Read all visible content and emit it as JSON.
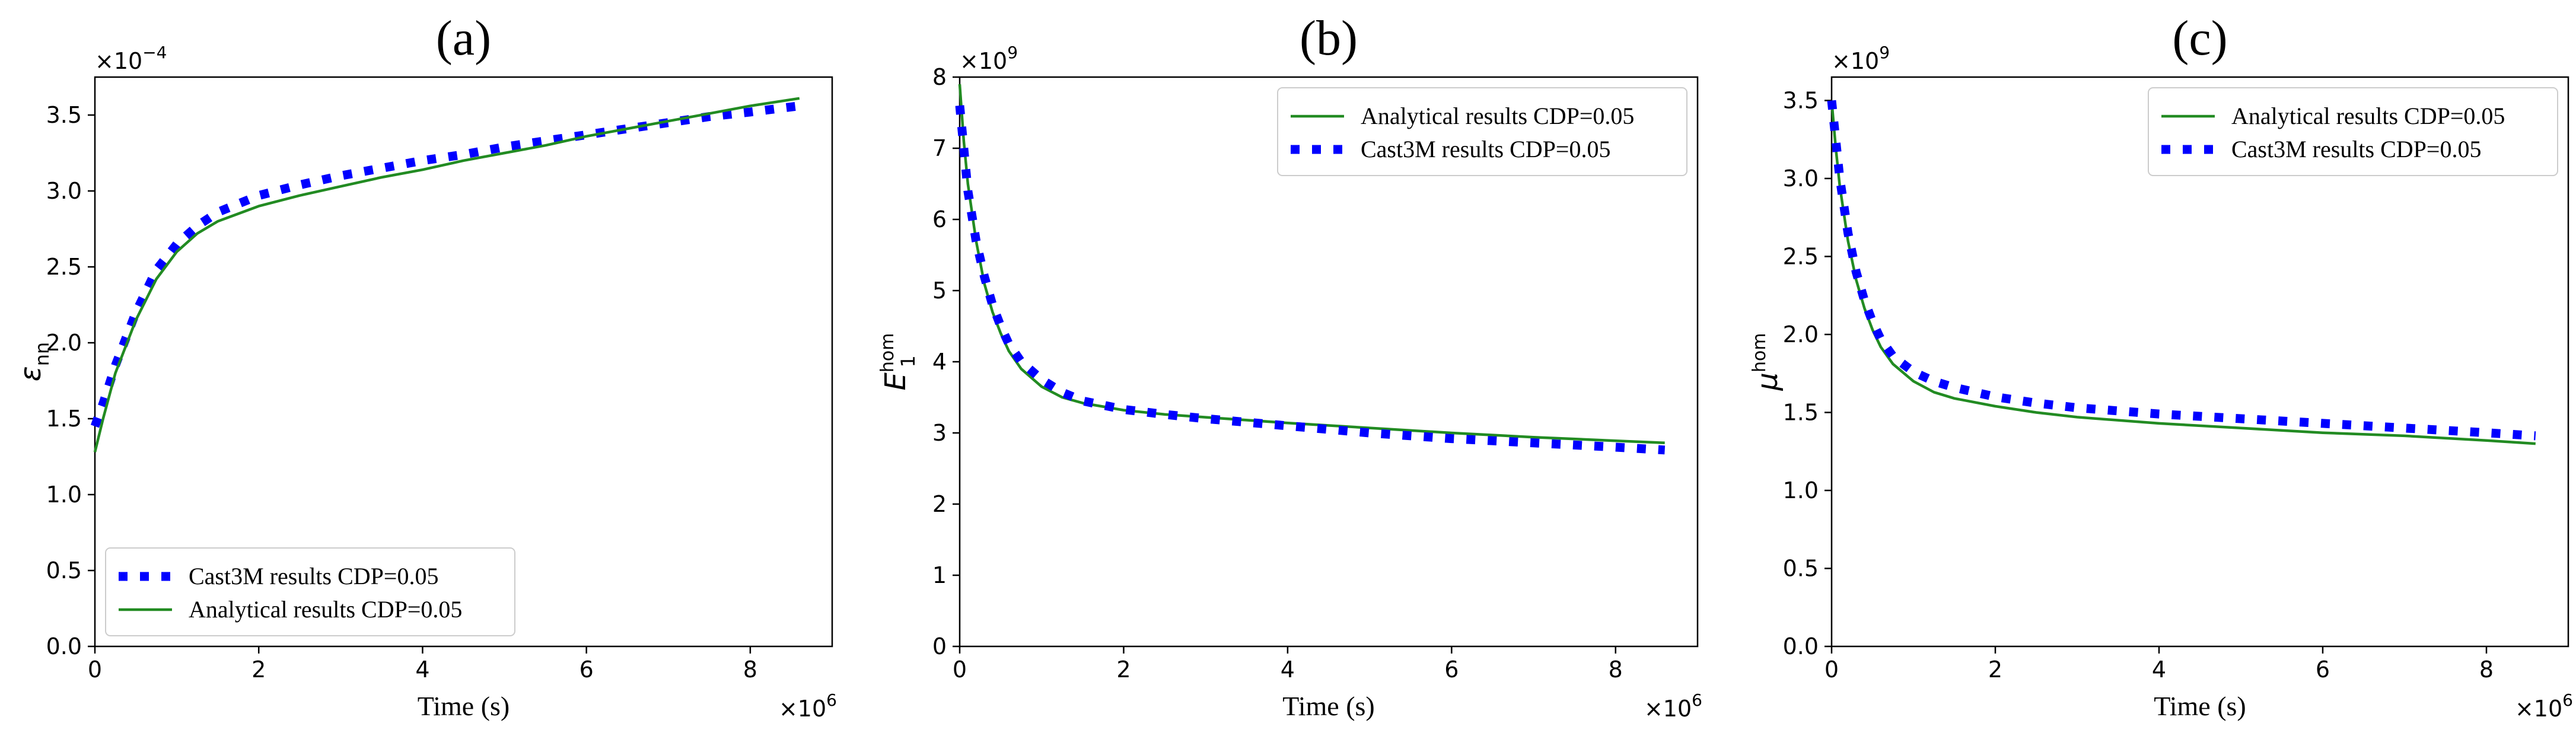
{
  "chart_data": [
    {
      "type": "line",
      "panel_label": "(a)",
      "ylabel": "ε",
      "ylabel_sub": "nn",
      "xlabel": "Time (s)",
      "x_multiplier_base": "×10",
      "x_multiplier_exp": "6",
      "y_multiplier_base": "×10",
      "y_multiplier_exp": "−4",
      "xlim": [
        0,
        9.0
      ],
      "ylim": [
        0.0,
        3.75
      ],
      "xticks": [
        0,
        2,
        4,
        6,
        8
      ],
      "yticks": [
        0.0,
        0.5,
        1.0,
        1.5,
        2.0,
        2.5,
        3.0,
        3.5
      ],
      "ytick_labels": [
        "0.0",
        "0.5",
        "1.0",
        "1.5",
        "2.0",
        "2.5",
        "3.0",
        "3.5"
      ],
      "xtick_labels": [
        "0",
        "2",
        "4",
        "6",
        "8"
      ],
      "legend_position": "lower-left",
      "series": [
        {
          "name": "Cast3M results CDP=0.05",
          "style": "dotted",
          "color": "#0000ff",
          "x": [
            0.0,
            0.1,
            0.25,
            0.5,
            0.75,
            1.0,
            1.25,
            1.5,
            2.0,
            2.5,
            3.0,
            3.5,
            4.0,
            4.5,
            5.0,
            5.5,
            6.0,
            6.5,
            7.0,
            7.5,
            8.0,
            8.6
          ],
          "y": [
            1.45,
            1.6,
            1.85,
            2.2,
            2.48,
            2.65,
            2.77,
            2.86,
            2.97,
            3.04,
            3.1,
            3.15,
            3.2,
            3.24,
            3.29,
            3.33,
            3.37,
            3.41,
            3.45,
            3.49,
            3.52,
            3.56
          ]
        },
        {
          "name": "Analytical results CDP=0.05",
          "style": "solid",
          "color": "#228b22",
          "x": [
            0.0,
            0.1,
            0.25,
            0.5,
            0.75,
            1.0,
            1.25,
            1.5,
            2.0,
            2.5,
            3.0,
            3.5,
            4.0,
            4.5,
            5.0,
            5.5,
            6.0,
            6.5,
            7.0,
            7.5,
            8.0,
            8.6
          ],
          "y": [
            1.28,
            1.5,
            1.8,
            2.15,
            2.42,
            2.6,
            2.72,
            2.8,
            2.9,
            2.97,
            3.03,
            3.09,
            3.14,
            3.2,
            3.25,
            3.3,
            3.36,
            3.41,
            3.46,
            3.51,
            3.56,
            3.61
          ]
        }
      ]
    },
    {
      "type": "line",
      "panel_label": "(b)",
      "ylabel": "E",
      "ylabel_sub": "1",
      "ylabel_sup": "hom",
      "xlabel": "Time (s)",
      "x_multiplier_base": "×10",
      "x_multiplier_exp": "6",
      "y_multiplier_base": "×10",
      "y_multiplier_exp": "9",
      "xlim": [
        0,
        9.0
      ],
      "ylim": [
        0,
        8
      ],
      "xticks": [
        0,
        2,
        4,
        6,
        8
      ],
      "yticks": [
        0,
        1,
        2,
        3,
        4,
        5,
        6,
        7,
        8
      ],
      "ytick_labels": [
        "0",
        "1",
        "2",
        "3",
        "4",
        "5",
        "6",
        "7",
        "8"
      ],
      "xtick_labels": [
        "0",
        "2",
        "4",
        "6",
        "8"
      ],
      "legend_position": "top-right",
      "series": [
        {
          "name": "Analytical results CDP=0.05",
          "style": "solid",
          "color": "#228b22",
          "x": [
            0.0,
            0.05,
            0.1,
            0.2,
            0.3,
            0.4,
            0.5,
            0.6,
            0.75,
            1.0,
            1.25,
            1.5,
            2.0,
            2.5,
            3.0,
            4.0,
            5.0,
            6.0,
            7.0,
            8.0,
            8.6
          ],
          "y": [
            7.9,
            7.1,
            6.5,
            5.7,
            5.1,
            4.7,
            4.4,
            4.15,
            3.9,
            3.65,
            3.5,
            3.42,
            3.32,
            3.26,
            3.22,
            3.14,
            3.07,
            3.0,
            2.94,
            2.89,
            2.86
          ]
        },
        {
          "name": "Cast3M results CDP=0.05",
          "style": "dotted",
          "color": "#0000ff",
          "x": [
            0.0,
            0.05,
            0.1,
            0.2,
            0.3,
            0.4,
            0.5,
            0.6,
            0.75,
            1.0,
            1.25,
            1.5,
            2.0,
            2.5,
            3.0,
            4.0,
            5.0,
            6.0,
            7.0,
            8.0,
            8.6
          ],
          "y": [
            7.6,
            7.0,
            6.4,
            5.7,
            5.2,
            4.8,
            4.5,
            4.25,
            4.0,
            3.75,
            3.57,
            3.45,
            3.33,
            3.26,
            3.2,
            3.1,
            3.0,
            2.92,
            2.86,
            2.8,
            2.76
          ]
        }
      ]
    },
    {
      "type": "line",
      "panel_label": "(c)",
      "ylabel": "μ",
      "ylabel_sup": "hom",
      "xlabel": "Time (s)",
      "x_multiplier_base": "×10",
      "x_multiplier_exp": "6",
      "y_multiplier_base": "×10",
      "y_multiplier_exp": "9",
      "xlim": [
        0,
        9.0
      ],
      "ylim": [
        0.0,
        3.65
      ],
      "xticks": [
        0,
        2,
        4,
        6,
        8
      ],
      "yticks": [
        0.0,
        0.5,
        1.0,
        1.5,
        2.0,
        2.5,
        3.0,
        3.5
      ],
      "ytick_labels": [
        "0.0",
        "0.5",
        "1.0",
        "1.5",
        "2.0",
        "2.5",
        "3.0",
        "3.5"
      ],
      "xtick_labels": [
        "0",
        "2",
        "4",
        "6",
        "8"
      ],
      "legend_position": "top-right",
      "series": [
        {
          "name": "Analytical results CDP=0.05",
          "style": "solid",
          "color": "#228b22",
          "x": [
            0.0,
            0.05,
            0.1,
            0.2,
            0.3,
            0.4,
            0.5,
            0.6,
            0.75,
            1.0,
            1.25,
            1.5,
            2.0,
            2.5,
            3.0,
            4.0,
            5.0,
            6.0,
            7.0,
            8.0,
            8.6
          ],
          "y": [
            3.5,
            3.2,
            2.95,
            2.6,
            2.35,
            2.17,
            2.03,
            1.92,
            1.81,
            1.7,
            1.63,
            1.59,
            1.54,
            1.5,
            1.47,
            1.43,
            1.4,
            1.37,
            1.35,
            1.32,
            1.3
          ]
        },
        {
          "name": "Cast3M results CDP=0.05",
          "style": "dotted",
          "color": "#0000ff",
          "x": [
            0.0,
            0.05,
            0.1,
            0.2,
            0.3,
            0.4,
            0.5,
            0.6,
            0.75,
            1.0,
            1.25,
            1.5,
            2.0,
            2.5,
            3.0,
            4.0,
            5.0,
            6.0,
            7.0,
            8.0,
            8.6
          ],
          "y": [
            3.5,
            3.25,
            3.0,
            2.65,
            2.4,
            2.22,
            2.08,
            1.97,
            1.86,
            1.76,
            1.7,
            1.66,
            1.6,
            1.56,
            1.53,
            1.49,
            1.46,
            1.43,
            1.4,
            1.37,
            1.35
          ]
        }
      ]
    }
  ]
}
